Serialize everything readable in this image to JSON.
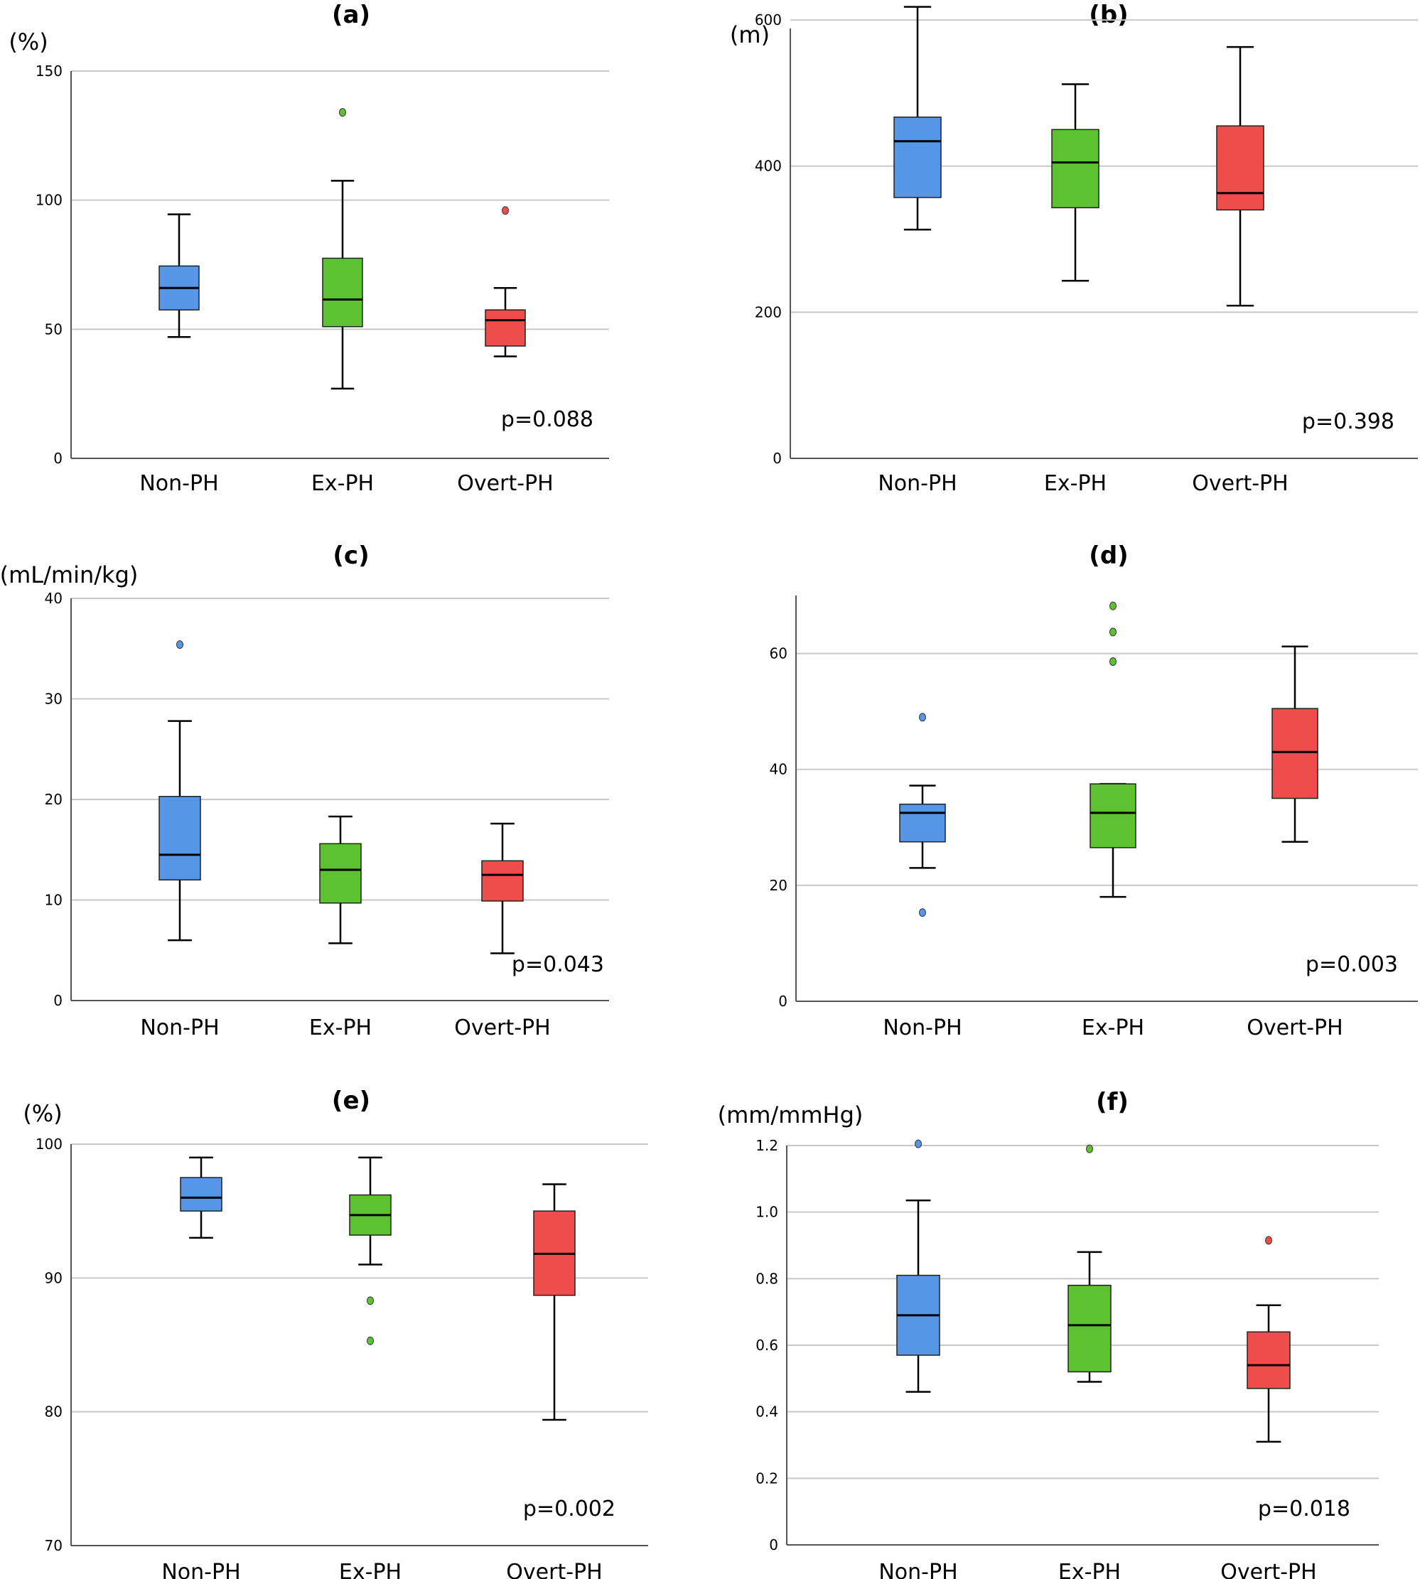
{
  "chart_data": [
    {
      "id": "a",
      "type": "box",
      "title": "(a)",
      "ylabel": "(%)",
      "ylim": [
        0,
        150
      ],
      "yticks": [
        0,
        50,
        100,
        150
      ],
      "ytick_labels": [
        "0",
        "50",
        "100",
        "150"
      ],
      "categories": [
        "Non-PH",
        "Ex-PH",
        "Overt-PH"
      ],
      "series": [
        {
          "name": "Non-PH",
          "color": "#5596E6",
          "whisker_low": 47,
          "q1": 57.5,
          "median": 66,
          "q3": 74.5,
          "whisker_high": 94.5,
          "outliers": []
        },
        {
          "name": "Ex-PH",
          "color": "#5DC22F",
          "whisker_low": 27,
          "q1": 51,
          "median": 61.5,
          "q3": 77.5,
          "whisker_high": 107.5,
          "outliers": [
            134
          ]
        },
        {
          "name": "Overt-PH",
          "color": "#EF4C4C",
          "whisker_low": 39.5,
          "q1": 43.5,
          "median": 53.5,
          "q3": 57.5,
          "whisker_high": 66,
          "outliers": [
            96
          ]
        }
      ],
      "annotation": "p=0.088"
    },
    {
      "id": "b",
      "type": "box",
      "title": "(b)",
      "ylabel": "(m)",
      "ylim": [
        0,
        620
      ],
      "yticks": [
        0,
        200,
        400,
        600
      ],
      "ytick_labels": [
        "0",
        "200",
        "400",
        "600"
      ],
      "categories": [
        "Non-PH",
        "Ex-PH",
        "Overt-PH"
      ],
      "series": [
        {
          "name": "Non-PH",
          "color": "#5596E6",
          "whisker_low": 313,
          "q1": 357,
          "median": 434,
          "q3": 467,
          "whisker_high": 618,
          "outliers": []
        },
        {
          "name": "Ex-PH",
          "color": "#5DC22F",
          "whisker_low": 243,
          "q1": 343,
          "median": 405,
          "q3": 450,
          "whisker_high": 512,
          "outliers": []
        },
        {
          "name": "Overt-PH",
          "color": "#EF4C4C",
          "whisker_low": 209,
          "q1": 340,
          "median": 363,
          "q3": 455,
          "whisker_high": 563,
          "outliers": []
        }
      ],
      "annotation": "p=0.398"
    },
    {
      "id": "c",
      "type": "box",
      "title": "(c)",
      "ylabel": "(mL/min/kg)",
      "ylim": [
        0,
        40
      ],
      "yticks": [
        0,
        10,
        20,
        30,
        40
      ],
      "ytick_labels": [
        "0",
        "10",
        "20",
        "30",
        "40"
      ],
      "categories": [
        "Non-PH",
        "Ex-PH",
        "Overt-PH"
      ],
      "series": [
        {
          "name": "Non-PH",
          "color": "#5596E6",
          "whisker_low": 6,
          "q1": 12,
          "median": 14.5,
          "q3": 20.3,
          "whisker_high": 27.8,
          "outliers": [
            35.4
          ]
        },
        {
          "name": "Ex-PH",
          "color": "#5DC22F",
          "whisker_low": 5.7,
          "q1": 9.7,
          "median": 13,
          "q3": 15.6,
          "whisker_high": 18.3,
          "outliers": []
        },
        {
          "name": "Overt-PH",
          "color": "#EF4C4C",
          "whisker_low": 4.7,
          "q1": 9.9,
          "median": 12.5,
          "q3": 13.9,
          "whisker_high": 17.6,
          "outliers": []
        }
      ],
      "annotation": "p=0.043"
    },
    {
      "id": "d",
      "type": "box",
      "title": "(d)",
      "ylabel": "",
      "ylim": [
        0,
        70
      ],
      "yticks": [
        0,
        20,
        40,
        60
      ],
      "ytick_labels": [
        "0",
        "20",
        "40",
        "60"
      ],
      "categories": [
        "Non-PH",
        "Ex-PH",
        "Overt-PH"
      ],
      "series": [
        {
          "name": "Non-PH",
          "color": "#5596E6",
          "whisker_low": 23,
          "q1": 27.5,
          "median": 32.5,
          "q3": 34,
          "whisker_high": 37.2,
          "outliers": [
            49,
            15.3
          ]
        },
        {
          "name": "Ex-PH",
          "color": "#5DC22F",
          "whisker_low": 18,
          "q1": 26.5,
          "median": 32.5,
          "q3": 37.5,
          "whisker_high": 37.5,
          "outliers": [
            68.2,
            63.7,
            58.6
          ]
        },
        {
          "name": "Overt-PH",
          "color": "#EF4C4C",
          "whisker_low": 27.5,
          "q1": 35,
          "median": 43,
          "q3": 50.5,
          "whisker_high": 61.2,
          "outliers": []
        }
      ],
      "annotation": "p=0.003"
    },
    {
      "id": "e",
      "type": "box",
      "title": "(e)",
      "ylabel": "(%)",
      "ylim": [
        70,
        100
      ],
      "yticks": [
        70,
        80,
        90,
        100
      ],
      "ytick_labels": [
        "70",
        "80",
        "90",
        "100"
      ],
      "categories": [
        "Non-PH",
        "Ex-PH",
        "Overt-PH"
      ],
      "series": [
        {
          "name": "Non-PH",
          "color": "#5596E6",
          "whisker_low": 93,
          "q1": 95,
          "median": 96,
          "q3": 97.5,
          "whisker_high": 99,
          "outliers": []
        },
        {
          "name": "Ex-PH",
          "color": "#5DC22F",
          "whisker_low": 91,
          "q1": 93.2,
          "median": 94.7,
          "q3": 96.2,
          "whisker_high": 99,
          "outliers": [
            88.3,
            85.3
          ]
        },
        {
          "name": "Overt-PH",
          "color": "#EF4C4C",
          "whisker_low": 79.4,
          "q1": 88.7,
          "median": 91.8,
          "q3": 95,
          "whisker_high": 97,
          "outliers": []
        }
      ],
      "annotation": "p=0.002"
    },
    {
      "id": "f",
      "type": "box",
      "title": "(f)",
      "ylabel": "(mm/mmHg)",
      "ylim": [
        0,
        1.2
      ],
      "yticks": [
        0,
        0.2,
        0.4,
        0.6,
        0.8,
        1.0,
        1.2
      ],
      "ytick_labels": [
        "0",
        "0.2",
        "0.4",
        "0.6",
        "0.8",
        "1.0",
        "1.2"
      ],
      "categories": [
        "Non-PH",
        "Ex-PH",
        "Overt-PH"
      ],
      "series": [
        {
          "name": "Non-PH",
          "color": "#5596E6",
          "whisker_low": 0.46,
          "q1": 0.57,
          "median": 0.69,
          "q3": 0.81,
          "whisker_high": 1.035,
          "outliers": [
            1.205
          ]
        },
        {
          "name": "Ex-PH",
          "color": "#5DC22F",
          "whisker_low": 0.49,
          "q1": 0.52,
          "median": 0.66,
          "q3": 0.78,
          "whisker_high": 0.88,
          "outliers": [
            1.19
          ]
        },
        {
          "name": "Overt-PH",
          "color": "#EF4C4C",
          "whisker_low": 0.31,
          "q1": 0.47,
          "median": 0.54,
          "q3": 0.64,
          "whisker_high": 0.72,
          "outliers": [
            0.915
          ]
        }
      ],
      "annotation": "p=0.018"
    }
  ]
}
